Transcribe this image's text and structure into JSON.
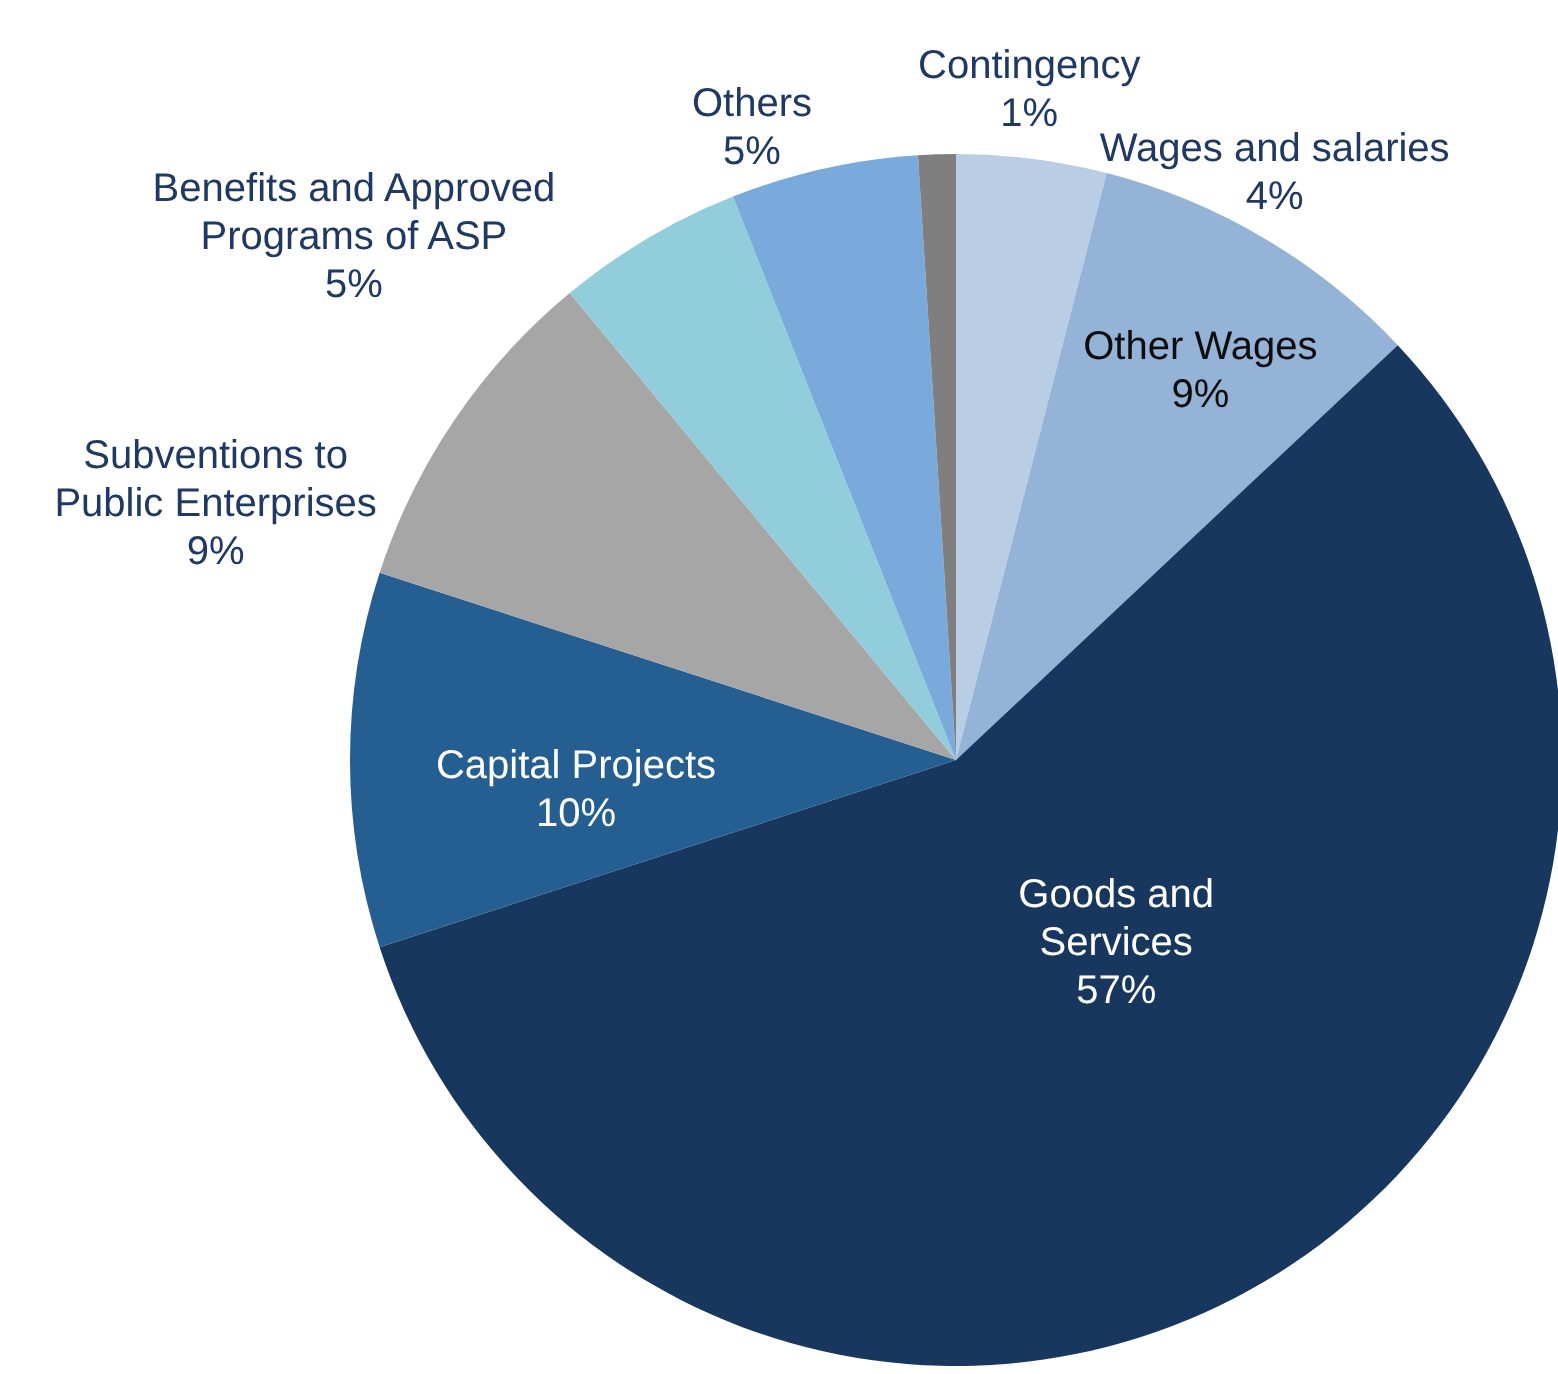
{
  "chart_data": {
    "type": "pie",
    "categories": [
      "Wages and salaries",
      "Other Wages",
      "Goods and Services",
      "Capital Projects",
      "Subventions to Public Enterprises",
      "Benefits and Approved Programs of ASP",
      "Others",
      "Contingency"
    ],
    "values": [
      4,
      9,
      57,
      10,
      9,
      5,
      5,
      1
    ],
    "value_labels": [
      "4%",
      "9%",
      "57%",
      "10%",
      "9%",
      "5%",
      "5%",
      "1%"
    ],
    "colors": [
      "#b9cde5",
      "#95b3d7",
      "#17375e",
      "#255e91",
      "#a6a6a6",
      "#92cddc",
      "#7aaadc",
      "#7f7f7f"
    ]
  }
}
